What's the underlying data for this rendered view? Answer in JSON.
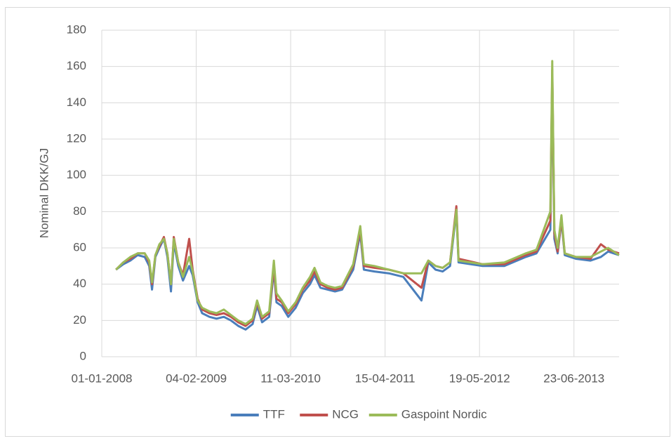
{
  "chart_data": {
    "type": "line",
    "y_label": "Nominal DKK/GJ",
    "x": [
      "2008-03-01",
      "2008-04-01",
      "2008-05-01",
      "2008-06-01",
      "2008-07-01",
      "2008-07-20",
      "2008-08-01",
      "2008-08-15",
      "2008-09-01",
      "2008-09-20",
      "2008-10-05",
      "2008-10-20",
      "2008-11-01",
      "2008-11-20",
      "2008-12-10",
      "2009-01-05",
      "2009-01-20",
      "2009-02-10",
      "2009-03-01",
      "2009-04-01",
      "2009-05-01",
      "2009-06-01",
      "2009-07-01",
      "2009-08-01",
      "2009-09-01",
      "2009-10-01",
      "2009-10-20",
      "2009-11-10",
      "2009-12-10",
      "2009-12-30",
      "2010-01-10",
      "2010-02-01",
      "2010-03-01",
      "2010-04-01",
      "2010-05-01",
      "2010-06-01",
      "2010-06-20",
      "2010-07-15",
      "2010-08-15",
      "2010-09-15",
      "2010-10-15",
      "2010-12-01",
      "2010-12-31",
      "2011-01-15",
      "2011-03-01",
      "2011-05-01",
      "2011-07-01",
      "2011-09-16",
      "2011-10-15",
      "2011-11-15",
      "2011-12-15",
      "2012-01-15",
      "2012-02-11",
      "2012-02-20",
      "2012-06-01",
      "2012-09-01",
      "2012-12-01",
      "2013-01-15",
      "2013-03-15",
      "2013-03-23",
      "2013-04-01",
      "2013-04-15",
      "2013-05-01",
      "2013-05-15",
      "2013-07-01",
      "2013-09-01",
      "2013-10-15",
      "2013-11-15",
      "2013-12-31"
    ],
    "series": [
      {
        "name": "TTF",
        "color": "#4a7ebb",
        "values": [
          48,
          51,
          53,
          56,
          55,
          50,
          37,
          55,
          60,
          65,
          55,
          36,
          63,
          50,
          42,
          50,
          45,
          30,
          24,
          22,
          21,
          22,
          20,
          17,
          15,
          18,
          28,
          19,
          22,
          48,
          30,
          28,
          22,
          27,
          35,
          40,
          45,
          38,
          37,
          36,
          37,
          48,
          68,
          48,
          47,
          46,
          44,
          31,
          52,
          48,
          47,
          50,
          80,
          52,
          50,
          50,
          55,
          57,
          70,
          155,
          65,
          57,
          75,
          56,
          54,
          53,
          55,
          58,
          56
        ]
      },
      {
        "name": "NCG",
        "color": "#c0504d",
        "values": [
          48,
          52,
          54,
          57,
          57,
          52,
          40,
          56,
          61,
          66,
          57,
          40,
          66,
          52,
          45,
          65,
          48,
          32,
          26,
          24,
          23,
          24,
          22,
          19,
          17,
          20,
          30,
          21,
          24,
          50,
          32,
          30,
          24,
          29,
          37,
          42,
          47,
          40,
          38,
          37,
          38,
          50,
          70,
          50,
          49,
          48,
          46,
          38,
          53,
          50,
          49,
          52,
          83,
          54,
          51,
          51,
          56,
          58,
          75,
          158,
          68,
          58,
          76,
          57,
          55,
          54,
          62,
          59,
          57
        ]
      },
      {
        "name": "Gaspoint Nordic",
        "color": "#9bbb59",
        "values": [
          48,
          52,
          55,
          57,
          57,
          53,
          41,
          56,
          62,
          65,
          57,
          40,
          65,
          52,
          44,
          55,
          47,
          31,
          27,
          25,
          24,
          26,
          23,
          20,
          18,
          21,
          31,
          22,
          25,
          53,
          35,
          31,
          25,
          30,
          38,
          44,
          49,
          41,
          39,
          38,
          39,
          51,
          72,
          51,
          50,
          48,
          46,
          46,
          53,
          50,
          49,
          52,
          81,
          53,
          51,
          52,
          57,
          59,
          80,
          163,
          70,
          60,
          78,
          57,
          55,
          55,
          58,
          60,
          56
        ]
      }
    ],
    "xlim": [
      "2008-01-01",
      "2013-12-31"
    ],
    "xticks": [
      {
        "value": "2008-01-01",
        "label": "01-01-2008"
      },
      {
        "value": "2009-02-04",
        "label": "04-02-2009"
      },
      {
        "value": "2010-03-11",
        "label": "11-03-2010"
      },
      {
        "value": "2011-04-15",
        "label": "15-04-2011"
      },
      {
        "value": "2012-05-19",
        "label": "19-05-2012"
      },
      {
        "value": "2013-06-23",
        "label": "23-06-2013"
      }
    ],
    "ylim": [
      0,
      180
    ],
    "yticks": [
      0,
      20,
      40,
      60,
      80,
      100,
      120,
      140,
      160,
      180
    ],
    "grid": true,
    "legend": "bottom"
  }
}
